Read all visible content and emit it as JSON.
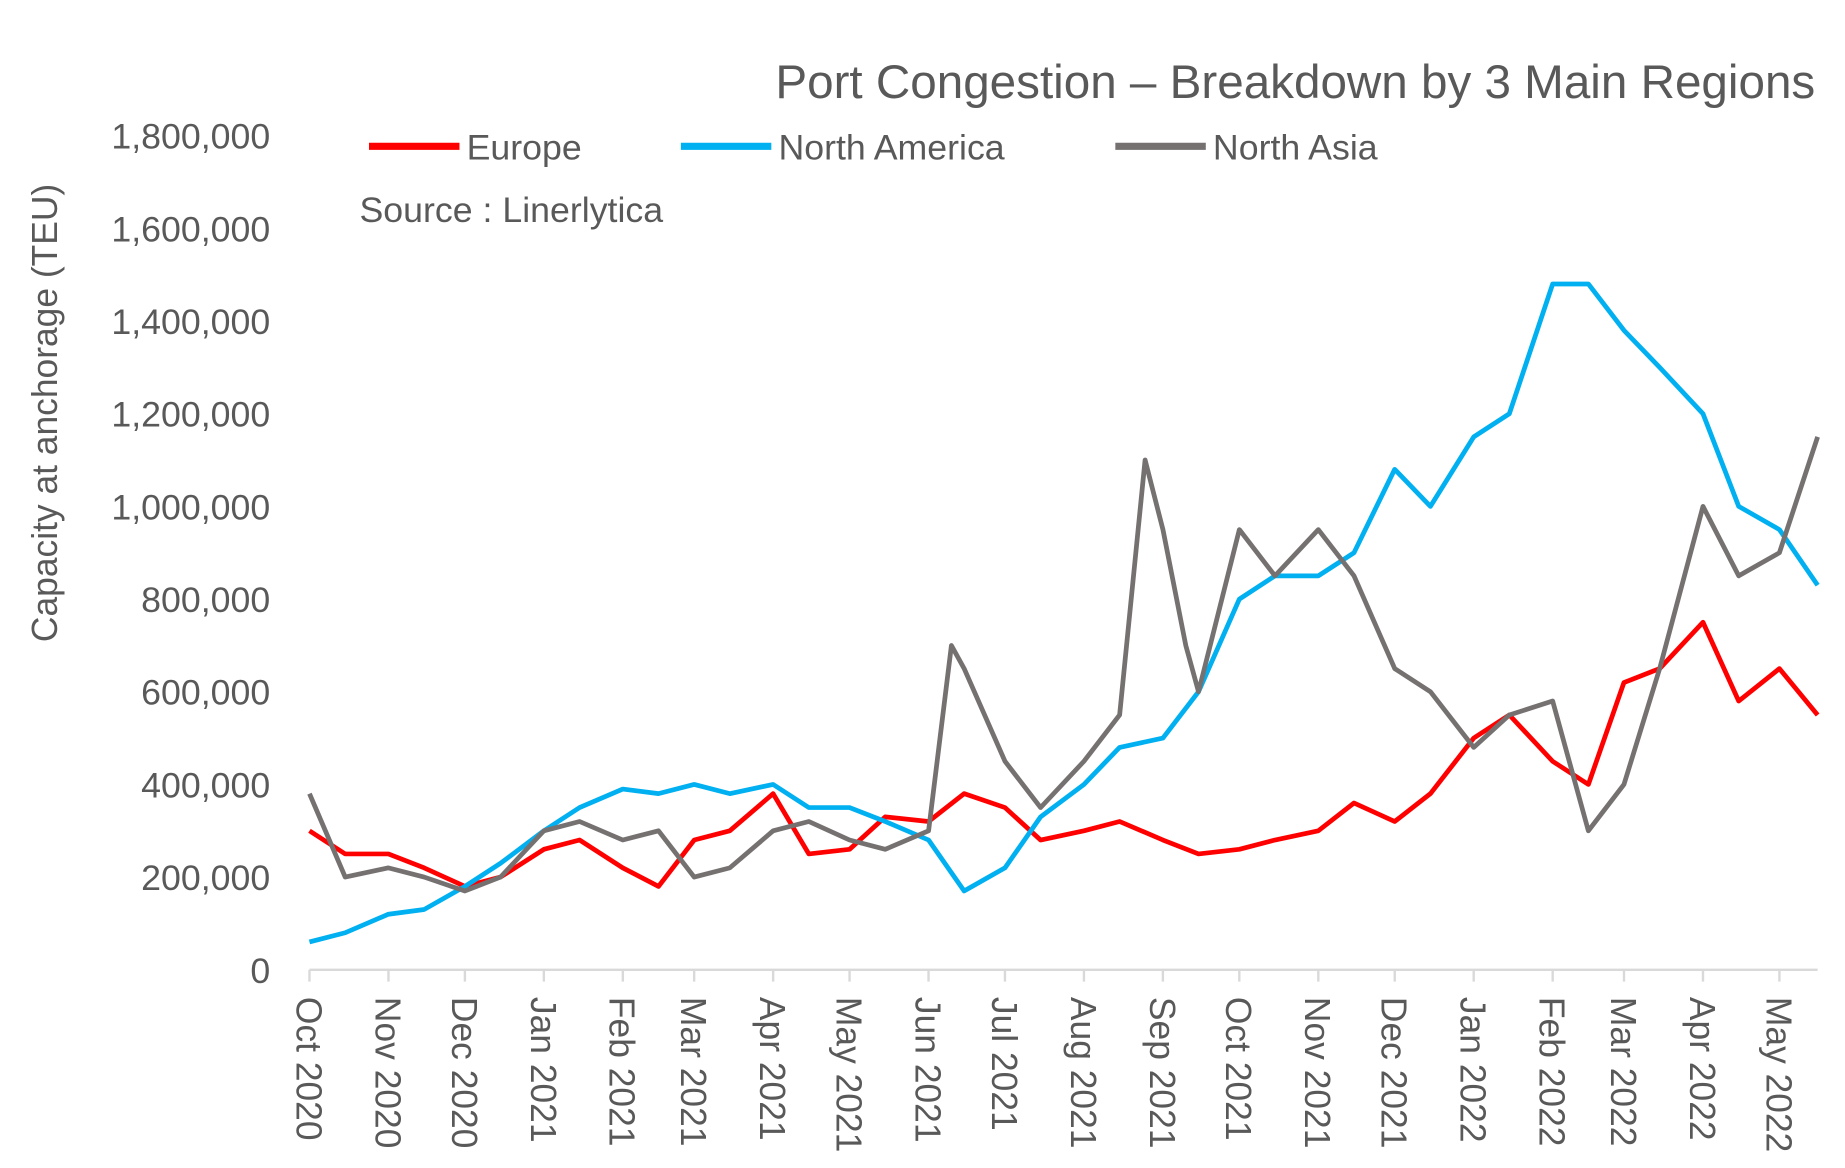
{
  "chart_data": {
    "type": "line",
    "title": "Port Congestion – Breakdown by 3 Main Regions",
    "subtitle": "Source : Linerlytica",
    "xlabel": "",
    "ylabel": "Capacity at anchorage (TEU)",
    "ylim": [
      0,
      1800000
    ],
    "yticks": [
      0,
      200000,
      400000,
      600000,
      800000,
      1000000,
      1200000,
      1400000,
      1600000,
      1800000
    ],
    "ytick_labels": [
      "0",
      "200,000",
      "400,000",
      "600,000",
      "800,000",
      "1,000,000",
      "1,200,000",
      "1,400,000",
      "1,600,000",
      "1,800,000"
    ],
    "xlim": [
      "2020-10-01",
      "2022-05-16"
    ],
    "xticks": [
      "2020-10-01",
      "2020-11-01",
      "2020-12-01",
      "2021-01-01",
      "2021-02-01",
      "2021-03-01",
      "2021-04-01",
      "2021-05-01",
      "2021-06-01",
      "2021-07-01",
      "2021-08-01",
      "2021-09-01",
      "2021-10-01",
      "2021-11-01",
      "2021-12-01",
      "2022-01-01",
      "2022-02-01",
      "2022-03-01",
      "2022-04-01",
      "2022-05-01"
    ],
    "xtick_labels": [
      "Oct 2020",
      "Nov 2020",
      "Dec 2020",
      "Jan 2021",
      "Feb 2021",
      "Mar 2021",
      "Apr 2021",
      "May 2021",
      "Jun 2021",
      "Jul 2021",
      "Aug 2021",
      "Sep 2021",
      "Oct 2021",
      "Nov 2021",
      "Dec 2021",
      "Jan 2022",
      "Feb 2022",
      "Mar 2022",
      "Apr 2022",
      "May 2022"
    ],
    "grid": false,
    "legend_placement": "top",
    "series": [
      {
        "name": "Europe",
        "color": "#ff0000",
        "x": [
          "2020-10-01",
          "2020-10-15",
          "2020-11-01",
          "2020-11-15",
          "2020-12-01",
          "2020-12-15",
          "2021-01-01",
          "2021-01-15",
          "2021-02-01",
          "2021-02-15",
          "2021-03-01",
          "2021-03-15",
          "2021-04-01",
          "2021-04-15",
          "2021-05-01",
          "2021-05-15",
          "2021-06-01",
          "2021-06-15",
          "2021-07-01",
          "2021-07-15",
          "2021-08-01",
          "2021-08-15",
          "2021-09-01",
          "2021-09-15",
          "2021-10-01",
          "2021-10-15",
          "2021-11-01",
          "2021-11-15",
          "2021-12-01",
          "2021-12-15",
          "2022-01-01",
          "2022-01-15",
          "2022-02-01",
          "2022-02-15",
          "2022-03-01",
          "2022-03-15",
          "2022-04-01",
          "2022-04-15",
          "2022-05-01",
          "2022-05-16"
        ],
        "values": [
          300000,
          250000,
          250000,
          220000,
          180000,
          200000,
          260000,
          280000,
          220000,
          180000,
          280000,
          300000,
          380000,
          250000,
          260000,
          330000,
          320000,
          380000,
          350000,
          280000,
          300000,
          320000,
          280000,
          250000,
          260000,
          280000,
          300000,
          360000,
          320000,
          380000,
          500000,
          550000,
          450000,
          400000,
          620000,
          650000,
          750000,
          580000,
          650000,
          550000
        ]
      },
      {
        "name": "North America",
        "color": "#00b0f0",
        "x": [
          "2020-10-01",
          "2020-10-15",
          "2020-11-01",
          "2020-11-15",
          "2020-12-01",
          "2020-12-15",
          "2021-01-01",
          "2021-01-15",
          "2021-02-01",
          "2021-02-15",
          "2021-03-01",
          "2021-03-15",
          "2021-04-01",
          "2021-04-15",
          "2021-05-01",
          "2021-05-15",
          "2021-06-01",
          "2021-06-15",
          "2021-07-01",
          "2021-07-15",
          "2021-08-01",
          "2021-08-15",
          "2021-09-01",
          "2021-09-15",
          "2021-10-01",
          "2021-10-15",
          "2021-11-01",
          "2021-11-15",
          "2021-12-01",
          "2021-12-15",
          "2022-01-01",
          "2022-01-15",
          "2022-02-01",
          "2022-02-15",
          "2022-03-01",
          "2022-03-15",
          "2022-04-01",
          "2022-04-15",
          "2022-05-01",
          "2022-05-16"
        ],
        "values": [
          60000,
          80000,
          120000,
          130000,
          180000,
          230000,
          300000,
          350000,
          390000,
          380000,
          400000,
          380000,
          400000,
          350000,
          350000,
          320000,
          280000,
          170000,
          220000,
          330000,
          400000,
          480000,
          500000,
          600000,
          800000,
          850000,
          850000,
          900000,
          1080000,
          1000000,
          1150000,
          1200000,
          1480000,
          1480000,
          1380000,
          1300000,
          1200000,
          1000000,
          950000,
          830000
        ]
      },
      {
        "name": "North Asia",
        "color": "#767171",
        "x": [
          "2020-10-01",
          "2020-10-15",
          "2020-11-01",
          "2020-11-15",
          "2020-12-01",
          "2020-12-15",
          "2021-01-01",
          "2021-01-15",
          "2021-02-01",
          "2021-02-15",
          "2021-03-01",
          "2021-03-15",
          "2021-04-01",
          "2021-04-15",
          "2021-05-01",
          "2021-05-15",
          "2021-06-01",
          "2021-06-10",
          "2021-06-15",
          "2021-07-01",
          "2021-07-15",
          "2021-08-01",
          "2021-08-15",
          "2021-08-25",
          "2021-09-01",
          "2021-09-10",
          "2021-09-15",
          "2021-10-01",
          "2021-10-15",
          "2021-11-01",
          "2021-11-15",
          "2021-12-01",
          "2021-12-15",
          "2022-01-01",
          "2022-01-15",
          "2022-02-01",
          "2022-02-15",
          "2022-03-01",
          "2022-03-15",
          "2022-04-01",
          "2022-04-15",
          "2022-05-01",
          "2022-05-16"
        ],
        "values": [
          380000,
          200000,
          220000,
          200000,
          170000,
          200000,
          300000,
          320000,
          280000,
          300000,
          200000,
          220000,
          300000,
          320000,
          280000,
          260000,
          300000,
          700000,
          650000,
          450000,
          350000,
          450000,
          550000,
          1100000,
          950000,
          700000,
          600000,
          950000,
          850000,
          950000,
          850000,
          650000,
          600000,
          480000,
          550000,
          580000,
          300000,
          400000,
          650000,
          1000000,
          850000,
          900000,
          1150000
        ]
      }
    ]
  }
}
